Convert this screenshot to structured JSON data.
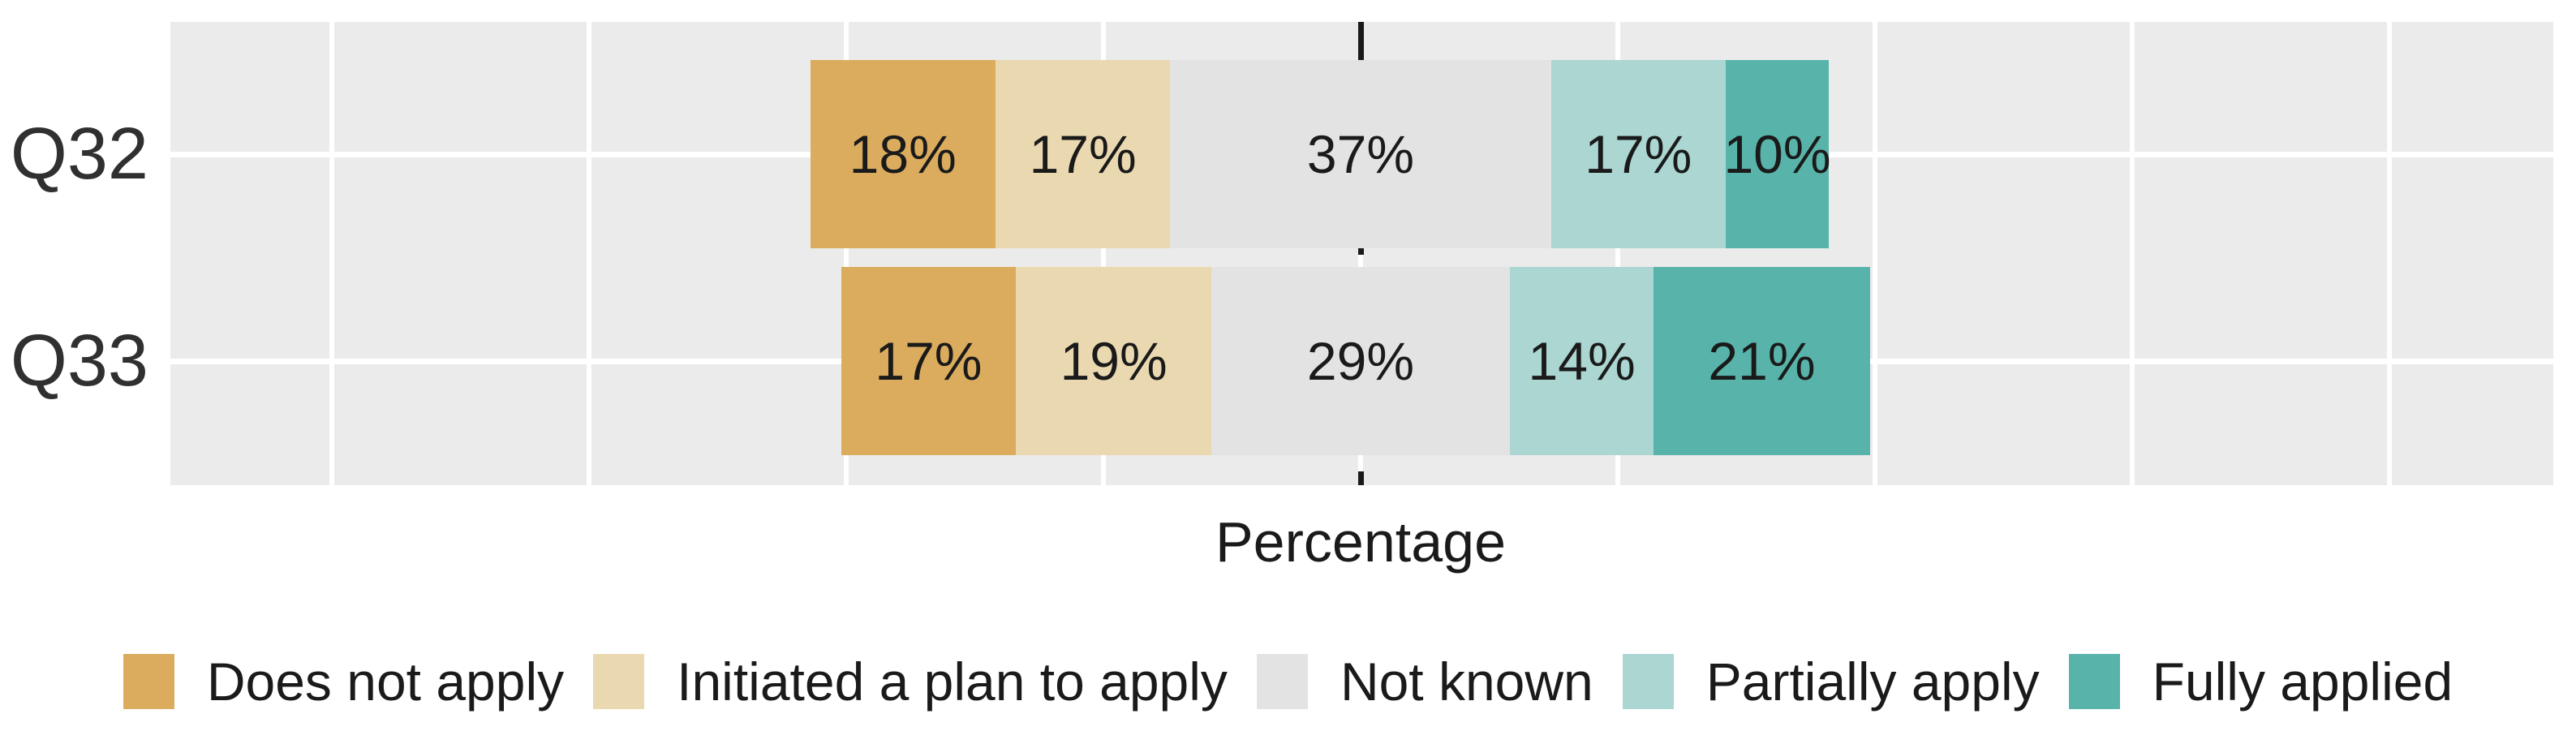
{
  "figure": {
    "background": "#FFFFFF",
    "panel_background": "#EBEBEB",
    "gridline_color": "#FFFFFF",
    "reference_line_color": "#1A1A1A",
    "bar_label_color": "#1A1A1A",
    "axis_label_color": "#303030"
  },
  "chart_data": {
    "type": "bar",
    "variant": "horizontal-diverging-stacked",
    "title": "",
    "xlabel": "Percentage",
    "ylabel": "",
    "categories": [
      "Q32",
      "Q33"
    ],
    "series": [
      {
        "name": "Does not apply",
        "color": "#DBAC5E",
        "values": [
          18,
          17
        ]
      },
      {
        "name": "Initiated a plan to apply",
        "color": "#EAD9B0",
        "values": [
          17,
          19
        ]
      },
      {
        "name": "Not known",
        "color": "#E3E3E3",
        "values": [
          37,
          29
        ]
      },
      {
        "name": "Partially apply",
        "color": "#ABD6D2",
        "values": [
          17,
          14
        ]
      },
      {
        "name": "Fully applied",
        "color": "#58B4AB",
        "values": [
          10,
          21
        ]
      }
    ],
    "value_suffix": "%",
    "x_axis": {
      "breaks_pct": [
        -100,
        -75,
        -50,
        -25,
        0,
        25,
        50,
        75,
        100
      ],
      "tick_labels_shown": false,
      "reference_line": "dashed vertical line at 0"
    },
    "stack_alignment": "middle category (Not known) centered on 0",
    "grid": "white major gridlines on gray panel",
    "legend_position": "bottom",
    "legend_items": [
      "Does not apply",
      "Initiated a plan to apply",
      "Not known",
      "Partially apply",
      "Fully applied"
    ]
  }
}
